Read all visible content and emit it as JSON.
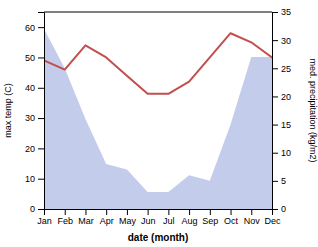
{
  "chart_data": {
    "type": "line",
    "xlabel": "date (month)",
    "ylabel": "max temp (C)",
    "y2label": "med. precipitation (kg/m2)",
    "categories": [
      "Jan",
      "Feb",
      "Mar",
      "Apr",
      "May",
      "Jun",
      "Jul",
      "Aug",
      "Sep",
      "Oct",
      "Nov",
      "Dec"
    ],
    "series": [
      {
        "type": "area",
        "axis": "y2",
        "color": "#b8c4e8",
        "values": [
          32,
          25,
          16,
          8,
          7,
          3,
          3,
          6,
          5,
          15,
          27,
          27
        ]
      },
      {
        "type": "line",
        "color": "#c0504d",
        "values": [
          49,
          46,
          54,
          50,
          44,
          38,
          38,
          42,
          50,
          58,
          55,
          50
        ]
      }
    ],
    "ylim": [
      0,
      65
    ],
    "yticks": [
      0,
      10,
      20,
      30,
      40,
      50,
      60
    ],
    "y2lim": [
      0,
      35
    ],
    "y2ticks": [
      0,
      5,
      10,
      15,
      20,
      25,
      30,
      35
    ],
    "grid": false
  }
}
